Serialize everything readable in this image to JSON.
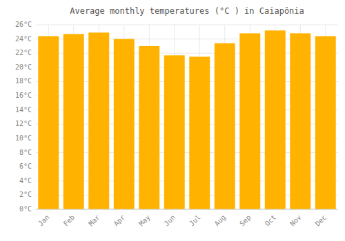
{
  "chart_data": {
    "type": "bar",
    "title": "Average monthly temperatures (°C ) in Caiapônia",
    "categories": [
      "Jan",
      "Feb",
      "Mar",
      "Apr",
      "May",
      "Jun",
      "Jul",
      "Aug",
      "Sep",
      "Oct",
      "Nov",
      "Dec"
    ],
    "values": [
      24.4,
      24.7,
      24.9,
      24.0,
      23.0,
      21.7,
      21.5,
      23.4,
      24.8,
      25.2,
      24.8,
      24.4
    ],
    "color": "#FFB300",
    "ylim": [
      0,
      26
    ],
    "yticks": [
      {
        "value": 0,
        "label": "0°C"
      },
      {
        "value": 2,
        "label": "2°C"
      },
      {
        "value": 4,
        "label": "4°C"
      },
      {
        "value": 6,
        "label": "6°C"
      },
      {
        "value": 8,
        "label": "8°C"
      },
      {
        "value": 10,
        "label": "10°C"
      },
      {
        "value": 12,
        "label": "12°C"
      },
      {
        "value": 14,
        "label": "14°C"
      },
      {
        "value": 16,
        "label": "16°C"
      },
      {
        "value": 18,
        "label": "18°C"
      },
      {
        "value": 20,
        "label": "20°C"
      },
      {
        "value": 22,
        "label": "22°C"
      },
      {
        "value": 24,
        "label": "24°C"
      },
      {
        "value": 26,
        "label": "26°C"
      }
    ],
    "grid": true
  }
}
